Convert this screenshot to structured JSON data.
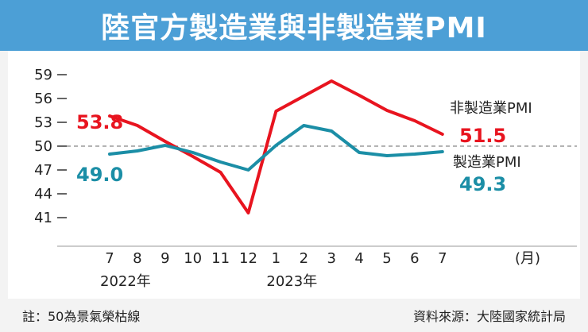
{
  "title": "陸官方製造業與非製造業PMI",
  "chart_data": {
    "type": "line",
    "categories": [
      "7",
      "8",
      "9",
      "10",
      "11",
      "12",
      "1",
      "2",
      "3",
      "4",
      "5",
      "6",
      "7"
    ],
    "year_labels": [
      {
        "label": "2022年",
        "at_index": 0
      },
      {
        "label": "2023年",
        "at_index": 6
      }
    ],
    "x_unit": "(月)",
    "y_ticks": [
      41,
      44,
      47,
      50,
      53,
      56,
      59
    ],
    "ylim": [
      40,
      60
    ],
    "reference_line": 50,
    "series": [
      {
        "name": "非製造業PMI",
        "color": "#e8141f",
        "values": [
          53.8,
          52.6,
          50.6,
          48.7,
          46.7,
          41.6,
          54.4,
          56.3,
          58.2,
          56.4,
          54.5,
          53.2,
          51.5
        ],
        "start_label": "53.8",
        "end_label": "51.5"
      },
      {
        "name": "製造業PMI",
        "color": "#1b8ea6",
        "values": [
          49.0,
          49.4,
          50.1,
          49.2,
          48.0,
          47.0,
          50.1,
          52.6,
          51.9,
          49.2,
          48.8,
          49.0,
          49.3
        ],
        "start_label": "49.0",
        "end_label": "49.3"
      }
    ]
  },
  "footer": {
    "note": "註：50為景氣榮枯線",
    "source": "資料來源：大陸國家統計局"
  }
}
